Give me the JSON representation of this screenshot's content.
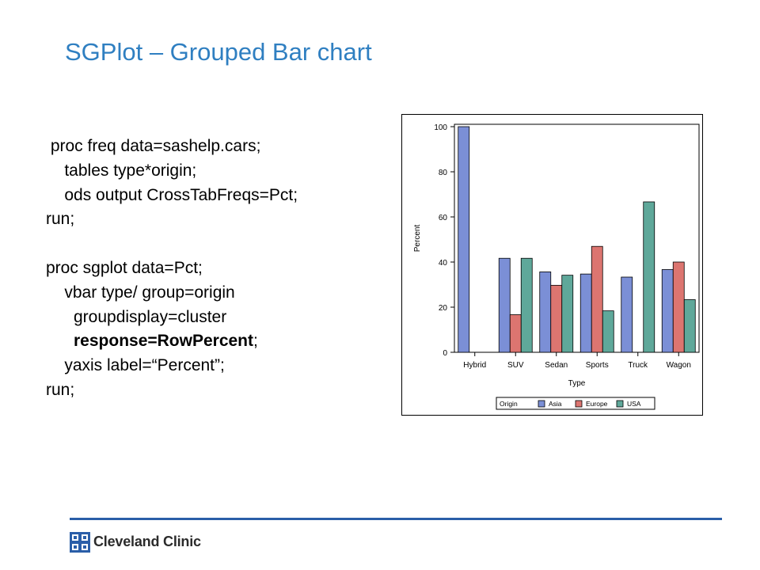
{
  "slide": {
    "title": "SGPlot – Grouped Bar chart",
    "code_lines": [
      [
        {
          "text": " proc freq data=sashelp.cars;",
          "bold": false
        }
      ],
      [
        {
          "text": "    tables type*origin;",
          "bold": false
        }
      ],
      [
        {
          "text": "    ods output CrossTabFreqs=Pct;",
          "bold": false
        }
      ],
      [
        {
          "text": "run;",
          "bold": false
        }
      ],
      [
        {
          "text": "",
          "bold": false
        }
      ],
      [
        {
          "text": "proc sgplot data=Pct;",
          "bold": false
        }
      ],
      [
        {
          "text": "    vbar type/ group=origin",
          "bold": false
        }
      ],
      [
        {
          "text": "      groupdisplay=cluster",
          "bold": false
        }
      ],
      [
        {
          "text": "      response=RowPercent",
          "bold": true
        },
        {
          "text": ";",
          "bold": false
        }
      ],
      [
        {
          "text": "    yaxis label=“Percent”;",
          "bold": false
        }
      ],
      [
        {
          "text": "run;",
          "bold": false
        }
      ]
    ]
  },
  "footer": {
    "logo_text": "Cleveland Clinic",
    "logo_icon": "cleveland-clinic-cross-icon",
    "rule_color": "#2a5ea8"
  },
  "chart_data": {
    "type": "bar",
    "xlabel": "Type",
    "ylabel": "Percent",
    "ylim": [
      0,
      100
    ],
    "yticks": [
      "0",
      "20",
      "40",
      "60",
      "80",
      "100"
    ],
    "grid": false,
    "categories": [
      "Hybrid",
      "SUV",
      "Sedan",
      "Sports",
      "Truck",
      "Wagon"
    ],
    "legend": {
      "title": "Origin",
      "placement": "bottom"
    },
    "series": [
      {
        "name": "Asia",
        "color": "#7b8fd6",
        "values": [
          100,
          41.67,
          35.64,
          34.69,
          33.33,
          36.67
        ]
      },
      {
        "name": "Europe",
        "color": "#dc7570",
        "values": [
          null,
          16.67,
          29.7,
          46.94,
          null,
          40.0
        ]
      },
      {
        "name": "USA",
        "color": "#5fa89a",
        "values": [
          null,
          41.67,
          34.16,
          18.37,
          66.67,
          23.33
        ]
      }
    ]
  }
}
